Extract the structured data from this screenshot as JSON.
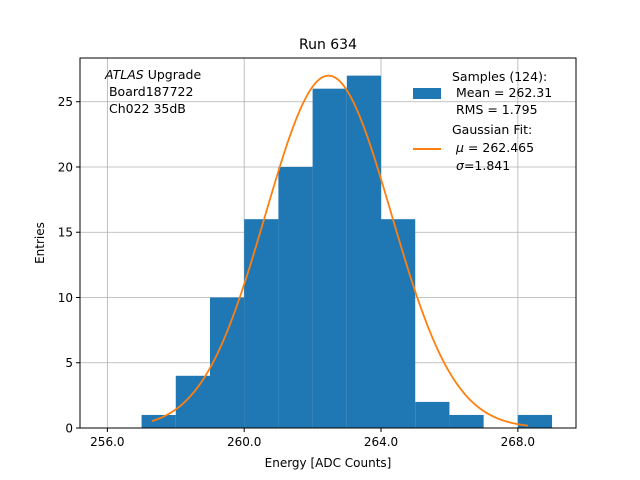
{
  "chart_data": {
    "type": "bar",
    "title": "Run 634",
    "xlabel": "Energy [ADC Counts]",
    "ylabel": "Entries",
    "xlim": [
      255.2,
      269.7
    ],
    "ylim": [
      0,
      28.35
    ],
    "grid": true,
    "xticks": [
      256.0,
      260.0,
      264.0,
      268.0
    ],
    "xtick_labels": [
      "256.0",
      "260.0",
      "264.0",
      "268.0"
    ],
    "yticks": [
      0,
      5,
      10,
      15,
      20,
      25
    ],
    "ytick_labels": [
      "0",
      "5",
      "10",
      "15",
      "20",
      "25"
    ],
    "histogram": {
      "name": "Samples",
      "color": "#1f77b4",
      "bin_edges": [
        257,
        258,
        259,
        260,
        261,
        262,
        263,
        264,
        265,
        266,
        267,
        268,
        269
      ],
      "counts": [
        1,
        4,
        10,
        16,
        20,
        26,
        27,
        16,
        2,
        1,
        0,
        1
      ]
    },
    "fit": {
      "name": "Gaussian Fit",
      "color": "#ff7f0e",
      "mu": 262.465,
      "sigma": 1.841,
      "amplitude": 27.0,
      "x_range": [
        257.3,
        268.3
      ]
    },
    "legend": {
      "position": "top-right",
      "entries": [
        {
          "line1": "Samples (124):",
          "line2": " Mean = 262.31",
          "line3": " RMS = 1.795"
        },
        {
          "line1": "Gaussian Fit:",
          "line2_sym": "μ",
          "line2_rest": " = 262.465",
          "line3_sym": "σ",
          "line3_rest": "=1.841"
        }
      ]
    },
    "annotation": {
      "italic": "ATLAS",
      "rest": " Upgrade",
      "line2": " Board187722",
      "line3": " Ch022 35dB"
    }
  }
}
